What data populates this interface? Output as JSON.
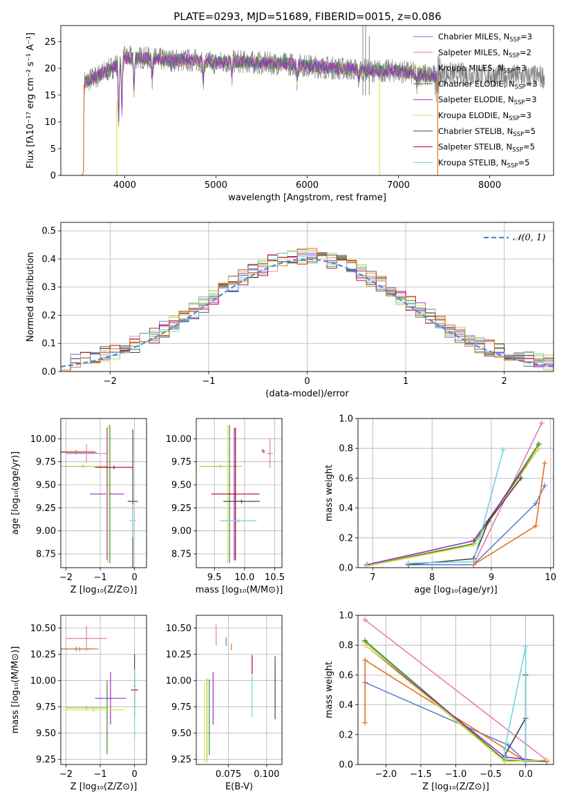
{
  "colors": {
    "chabrier_miles": "#5b7fd6",
    "salpeter_miles": "#e67ab8",
    "kroupa_miles": "#a8c83c",
    "chabrier_elodie": "#3a8a2a",
    "salpeter_elodie": "#9a2bc6",
    "kroupa_elodie": "#dfe24a",
    "chabrier_stelib": "#444444",
    "salpeter_stelib": "#b0001e",
    "kroupa_stelib": "#6fd3de",
    "extra_orange": "#e6701a",
    "normal": "#4f86d9",
    "spectrum_grey": "#7f7f7f"
  },
  "chart_data": [
    {
      "id": "spectrum",
      "type": "line",
      "title": "PLATE=0293, MJD=51689, FIBERID=0015, z=0.086",
      "xlabel": "wavelength [Angstrom, rest frame]",
      "ylabel": "Flux [fλ10⁻¹⁷ erg cm⁻² s⁻¹ A⁻¹]",
      "xlim": [
        3300,
        8700
      ],
      "ylim": [
        0,
        28
      ],
      "xticks": [
        4000,
        5000,
        6000,
        7000,
        8000
      ],
      "yticks": [
        0,
        5,
        10,
        15,
        20,
        25
      ],
      "legend_placement": "top-right",
      "legend": [
        {
          "name": "Chabrier MILES, N",
          "sub": "SSP",
          "suffix": "=3",
          "color": "chabrier_miles"
        },
        {
          "name": "Salpeter MILES, N",
          "sub": "SSP",
          "suffix": "=2",
          "color": "salpeter_miles"
        },
        {
          "name": "Kroupa MILES, N",
          "sub": "SSP",
          "suffix": "=3",
          "color": "kroupa_miles"
        },
        {
          "name": "Chabrier ELODIE, N",
          "sub": "SSP",
          "suffix": "=3",
          "color": "chabrier_elodie"
        },
        {
          "name": "Salpeter ELODIE, N",
          "sub": "SSP",
          "suffix": "=3",
          "color": "salpeter_elodie"
        },
        {
          "name": "Kroupa ELODIE, N",
          "sub": "SSP",
          "suffix": "=3",
          "color": "kroupa_elodie"
        },
        {
          "name": "Chabrier STELIB, N",
          "sub": "SSP",
          "suffix": "=5",
          "color": "chabrier_stelib"
        },
        {
          "name": "Salpeter STELIB, N",
          "sub": "SSP",
          "suffix": "=5",
          "color": "salpeter_stelib"
        },
        {
          "name": "Kroupa STELIB, N",
          "sub": "SSP",
          "suffix": "=5",
          "color": "kroupa_stelib"
        }
      ],
      "continuum": {
        "x": [
          3500,
          3700,
          3900,
          4000,
          4200,
          4500,
          4800,
          5000,
          5200,
          5500,
          5800,
          6000,
          6200,
          6500,
          6800,
          7000,
          7200,
          7400
        ],
        "y": [
          17,
          18.5,
          20.5,
          22,
          22,
          21.5,
          21.5,
          21,
          21.3,
          21,
          20.8,
          20.5,
          20.2,
          19.8,
          19.5,
          19.5,
          19,
          18.5
        ]
      }
    },
    {
      "id": "residuals",
      "type": "step",
      "xlabel": "(data-model)/error",
      "ylabel": "Normed distribution",
      "xlim": [
        -2.5,
        2.5
      ],
      "ylim": [
        0,
        0.53
      ],
      "xticks": [
        -2,
        -1,
        0,
        1,
        2
      ],
      "yticks": [
        0.0,
        0.1,
        0.2,
        0.3,
        0.4,
        0.5
      ],
      "grid": true,
      "legend_placement": "top-right",
      "legend": [
        {
          "name": "𝒩(0, 1)",
          "color": "normal",
          "style": "dashed"
        }
      ],
      "bin_width": 0.1
    },
    {
      "id": "age_vs_Z",
      "type": "errorbar",
      "xlabel": "Z [log₁₀(Z/Z⊙)]",
      "ylabel": "age  [log₁₀(age/yr)]",
      "xlim": [
        -2.15,
        0.35
      ],
      "ylim": [
        8.6,
        10.22
      ],
      "xticks": [
        -2,
        -1,
        0
      ],
      "yticks": [
        8.75,
        9.0,
        9.25,
        9.5,
        9.75,
        10.0
      ],
      "grid": true,
      "points": [
        {
          "color": "chabrier_miles",
          "x": -1.7,
          "xerr": 0.6,
          "y": 9.85,
          "yerr": 0.02
        },
        {
          "color": "salpeter_miles",
          "x": -1.4,
          "xerr": 0.6,
          "y": 9.84,
          "yerr": 0.1
        },
        {
          "color": "extra_orange",
          "x": -1.7,
          "xerr": 0.55,
          "y": 9.86,
          "yerr": 0.02
        },
        {
          "color": "kroupa_miles",
          "x": -1.5,
          "xerr": 0.7,
          "y": 9.7,
          "yerr": 0.02
        },
        {
          "color": "chabrier_elodie",
          "x": -0.72,
          "xerr": 0.05,
          "y": 9.4,
          "yerr": 0.75
        },
        {
          "color": "salpeter_elodie",
          "x": -0.8,
          "xerr": 0.5,
          "y": 9.4,
          "yerr": 0.72
        },
        {
          "color": "kroupa_elodie",
          "x": -0.78,
          "xerr": 0.05,
          "y": 9.4,
          "yerr": 0.75
        },
        {
          "color": "chabrier_stelib",
          "x": -0.05,
          "xerr": 0.15,
          "y": 9.32,
          "yerr": 0.78
        },
        {
          "color": "salpeter_stelib",
          "x": -0.6,
          "xerr": 0.55,
          "y": 9.69,
          "yerr": 0.02
        },
        {
          "color": "kroupa_stelib",
          "x": -0.05,
          "xerr": 0.1,
          "y": 9.11,
          "yerr": 0.18
        }
      ]
    },
    {
      "id": "age_vs_mass",
      "type": "errorbar",
      "xlabel": "mass [log₁₀(M/M⊙)]",
      "ylabel": "",
      "xlim": [
        9.2,
        10.62
      ],
      "ylim": [
        8.6,
        10.22
      ],
      "xticks": [
        9.5,
        10.0,
        10.5
      ],
      "yticks": [
        8.75,
        9.0,
        9.25,
        9.5,
        9.75,
        10.0
      ],
      "grid": true,
      "points": [
        {
          "color": "chabrier_miles",
          "x": 10.3,
          "xerr": 0.02,
          "y": 9.87,
          "yerr": 0.02
        },
        {
          "color": "salpeter_miles",
          "x": 10.42,
          "xerr": 0.05,
          "y": 9.84,
          "yerr": 0.16
        },
        {
          "color": "extra_orange",
          "x": 10.32,
          "xerr": 0.02,
          "y": 9.86,
          "yerr": 0.02
        },
        {
          "color": "kroupa_miles",
          "x": 9.6,
          "xerr": 0.35,
          "y": 9.7,
          "yerr": 0.02
        },
        {
          "color": "chabrier_elodie",
          "x": 9.75,
          "xerr": 0.02,
          "y": 9.4,
          "yerr": 0.75
        },
        {
          "color": "salpeter_elodie",
          "x": 9.83,
          "xerr": 0.02,
          "y": 9.4,
          "yerr": 0.72
        },
        {
          "color": "kroupa_elodie",
          "x": 9.72,
          "xerr": 0.02,
          "y": 9.4,
          "yerr": 0.75
        },
        {
          "color": "chabrier_stelib",
          "x": 9.95,
          "xerr": 0.3,
          "y": 9.32,
          "yerr": 0.02
        },
        {
          "color": "salpeter_stelib",
          "x": 9.85,
          "xerr": 0.4,
          "y": 9.4,
          "yerr": 0.72
        },
        {
          "color": "kroupa_stelib",
          "x": 9.9,
          "xerr": 0.3,
          "y": 9.11,
          "yerr": 0.02
        }
      ]
    },
    {
      "id": "weight_vs_age",
      "type": "line",
      "xlabel": "age  [log₁₀(age/yr)]",
      "ylabel": "mass weight",
      "xlim": [
        6.75,
        10.05
      ],
      "ylim": [
        0,
        1.0
      ],
      "xticks": [
        7,
        8,
        9,
        10
      ],
      "yticks": [
        0.0,
        0.2,
        0.4,
        0.6,
        0.8,
        1.0
      ],
      "grid": true,
      "series": [
        {
          "color": "chabrier_miles",
          "x": [
            7.6,
            8.7,
            9.75,
            9.9
          ],
          "y": [
            0.02,
            0.02,
            0.43,
            0.55
          ]
        },
        {
          "color": "salpeter_miles",
          "x": [
            8.7,
            9.85
          ],
          "y": [
            0.02,
            0.97
          ]
        },
        {
          "color": "extra_orange",
          "x": [
            8.7,
            9.75,
            9.9
          ],
          "y": [
            0.02,
            0.28,
            0.7
          ]
        },
        {
          "color": "kroupa_miles",
          "x": [
            6.9,
            8.7,
            9.8
          ],
          "y": [
            0.02,
            0.16,
            0.82
          ]
        },
        {
          "color": "chabrier_elodie",
          "x": [
            6.9,
            8.7,
            9.8
          ],
          "y": [
            0.01,
            0.16,
            0.83
          ]
        },
        {
          "color": "salpeter_elodie",
          "x": [
            6.9,
            8.7,
            9.8
          ],
          "y": [
            0.02,
            0.18,
            0.8
          ]
        },
        {
          "color": "kroupa_elodie",
          "x": [
            6.9,
            8.7,
            9.8
          ],
          "y": [
            0.01,
            0.15,
            0.8
          ]
        },
        {
          "color": "chabrier_stelib",
          "x": [
            7.6,
            8.7,
            8.95,
            9.5
          ],
          "y": [
            0.02,
            0.06,
            0.31,
            0.6
          ]
        },
        {
          "color": "kroupa_stelib",
          "x": [
            7.6,
            8.7,
            9.2
          ],
          "y": [
            0.03,
            0.04,
            0.79
          ]
        }
      ]
    },
    {
      "id": "mass_vs_Z",
      "type": "errorbar",
      "xlabel": "Z [log₁₀(Z/Z⊙)]",
      "ylabel": "mass [log₁₀(M/M⊙)]",
      "xlim": [
        -2.15,
        0.35
      ],
      "ylim": [
        9.2,
        10.62
      ],
      "xticks": [
        -2,
        -1,
        0
      ],
      "yticks": [
        9.25,
        9.5,
        9.75,
        10.0,
        10.25,
        10.5
      ],
      "grid": true,
      "points": [
        {
          "color": "chabrier_miles",
          "x": -1.7,
          "xerr": 0.5,
          "y": 10.3,
          "yerr": 0.02
        },
        {
          "color": "salpeter_miles",
          "x": -1.4,
          "xerr": 0.6,
          "y": 10.4,
          "yerr": 0.12
        },
        {
          "color": "extra_orange",
          "x": -1.6,
          "xerr": 0.55,
          "y": 10.3,
          "yerr": 0.02
        },
        {
          "color": "kroupa_miles",
          "x": -1.4,
          "xerr": 0.6,
          "y": 9.74,
          "yerr": 0.02
        },
        {
          "color": "chabrier_elodie",
          "x": -0.8,
          "xerr": 0.02,
          "y": 9.65,
          "yerr": 0.35
        },
        {
          "color": "salpeter_elodie",
          "x": -0.7,
          "xerr": 0.45,
          "y": 9.83,
          "yerr": 0.25
        },
        {
          "color": "kroupa_elodie",
          "x": -1.2,
          "xerr": 0.9,
          "y": 9.72,
          "yerr": 0.02
        },
        {
          "color": "chabrier_stelib",
          "x": 0.0,
          "xerr": 0.02,
          "y": 9.95,
          "yerr": 0.3
        },
        {
          "color": "salpeter_stelib",
          "x": 0.0,
          "xerr": 0.1,
          "y": 9.91,
          "yerr": 0.1
        },
        {
          "color": "kroupa_stelib",
          "x": 0.0,
          "xerr": 0.02,
          "y": 9.78,
          "yerr": 0.33
        }
      ]
    },
    {
      "id": "mass_vs_ebv",
      "type": "errorbar",
      "xlabel": "E(B-V)",
      "ylabel": "",
      "xlim": [
        0.054,
        0.11
      ],
      "ylim": [
        9.2,
        10.62
      ],
      "xticks": [
        0.075,
        0.1
      ],
      "yticks": [
        9.25,
        9.5,
        9.75,
        10.0,
        10.25,
        10.5
      ],
      "grid": true,
      "points": [
        {
          "color": "chabrier_miles",
          "x": 0.0735,
          "xerr": 0,
          "y": 10.37,
          "yerr": 0.04
        },
        {
          "color": "salpeter_miles",
          "x": 0.067,
          "xerr": 0,
          "y": 10.43,
          "yerr": 0.1
        },
        {
          "color": "extra_orange",
          "x": 0.077,
          "xerr": 0,
          "y": 10.32,
          "yerr": 0.03
        },
        {
          "color": "kroupa_miles",
          "x": 0.061,
          "xerr": 0,
          "y": 9.62,
          "yerr": 0.4
        },
        {
          "color": "chabrier_elodie",
          "x": 0.0625,
          "xerr": 0,
          "y": 9.65,
          "yerr": 0.36
        },
        {
          "color": "salpeter_elodie",
          "x": 0.065,
          "xerr": 0,
          "y": 9.83,
          "yerr": 0.25
        },
        {
          "color": "kroupa_elodie",
          "x": 0.0595,
          "xerr": 0,
          "y": 9.6,
          "yerr": 0.38
        },
        {
          "color": "chabrier_stelib",
          "x": 0.1055,
          "xerr": 0,
          "y": 9.93,
          "yerr": 0.3
        },
        {
          "color": "salpeter_stelib",
          "x": 0.0905,
          "xerr": 0,
          "y": 10.15,
          "yerr": 0.09
        },
        {
          "color": "kroupa_stelib",
          "x": 0.0905,
          "xerr": 0,
          "y": 9.85,
          "yerr": 0.2
        }
      ]
    },
    {
      "id": "weight_vs_Z",
      "type": "line",
      "xlabel": "Z [log₁₀(Z/Z⊙)]",
      "ylabel": "mass weight",
      "xlim": [
        -2.4,
        0.4
      ],
      "ylim": [
        0,
        1.0
      ],
      "xticks": [
        -2.0,
        -1.5,
        -1.0,
        -0.5,
        0.0
      ],
      "yticks": [
        0.0,
        0.2,
        0.4,
        0.6,
        0.8,
        1.0
      ],
      "grid": true,
      "series": [
        {
          "color": "chabrier_miles",
          "x": [
            -2.3,
            -0.25,
            0.0,
            0.3
          ],
          "y": [
            0.55,
            0.13,
            0.02,
            0.03
          ]
        },
        {
          "color": "salpeter_miles",
          "x": [
            -2.3,
            0.3
          ],
          "y": [
            0.97,
            0.03
          ]
        },
        {
          "color": "extra_orange",
          "x": [
            -2.3,
            -2.3,
            0.0,
            0.3
          ],
          "y": [
            0.28,
            0.7,
            0.02,
            0.03
          ]
        },
        {
          "color": "kroupa_miles",
          "x": [
            -2.3,
            -0.3,
            0.3
          ],
          "y": [
            0.82,
            0.02,
            0.03
          ]
        },
        {
          "color": "chabrier_elodie",
          "x": [
            -2.3,
            -0.3,
            0.3
          ],
          "y": [
            0.83,
            0.03,
            0.02
          ]
        },
        {
          "color": "salpeter_elodie",
          "x": [
            -2.3,
            -0.3,
            0.3
          ],
          "y": [
            0.8,
            0.05,
            0.02
          ]
        },
        {
          "color": "kroupa_elodie",
          "x": [
            -2.3,
            -0.3,
            0.3
          ],
          "y": [
            0.8,
            0.02,
            0.03
          ]
        },
        {
          "color": "chabrier_stelib",
          "x": [
            -0.3,
            0.0,
            0.0,
            0.0
          ],
          "y": [
            0.06,
            0.31,
            0.6,
            0.02
          ]
        },
        {
          "color": "kroupa_stelib",
          "x": [
            -0.3,
            -0.3,
            0.0,
            0.0
          ],
          "y": [
            0.04,
            0.1,
            0.79,
            0.02
          ]
        }
      ]
    }
  ]
}
